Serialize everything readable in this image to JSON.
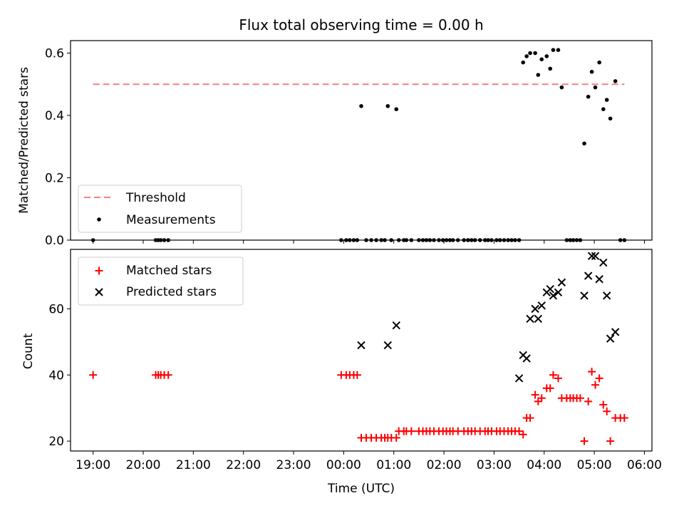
{
  "figure": {
    "title": "Flux total observing time = 0.00 h",
    "xlabel": "Time (UTC)",
    "xticks": [
      "19:00",
      "20:00",
      "21:00",
      "22:00",
      "23:00",
      "00:00",
      "01:00",
      "02:00",
      "03:00",
      "04:00",
      "05:00",
      "06:00"
    ],
    "colors": {
      "threshold": "#f08080",
      "measurement": "#000000",
      "matched": "#ff0000",
      "predicted": "#000000"
    }
  },
  "chart_data": [
    {
      "type": "scatter",
      "ylabel": "Matched/Predicted stars",
      "xlim": [
        18.55,
        30.15
      ],
      "ylim": [
        0,
        0.64
      ],
      "yticks": [
        "0.0",
        "0.2",
        "0.4",
        "0.6"
      ],
      "threshold": {
        "name": "Threshold",
        "value": 0.5,
        "x": [
          19.0,
          29.6
        ]
      },
      "legend": {
        "placement": "lower-left",
        "labels": [
          "Threshold",
          "Measurements"
        ]
      },
      "series": [
        {
          "name": "Measurements",
          "x": [
            19.0,
            20.25,
            20.3,
            20.35,
            20.42,
            20.5,
            23.95,
            24.05,
            24.12,
            24.2,
            24.27,
            24.35,
            24.45,
            24.55,
            24.65,
            24.75,
            24.82,
            24.88,
            24.95,
            25.05,
            25.1,
            25.2,
            25.25,
            25.35,
            25.5,
            25.58,
            25.65,
            25.72,
            25.8,
            25.9,
            25.98,
            26.05,
            26.12,
            26.18,
            26.28,
            26.4,
            26.48,
            26.55,
            26.62,
            26.72,
            26.82,
            26.88,
            26.95,
            27.05,
            27.12,
            27.2,
            27.28,
            27.35,
            27.42,
            27.5,
            27.58,
            27.65,
            27.72,
            27.82,
            27.88,
            27.95,
            28.05,
            28.12,
            28.18,
            28.28,
            28.35,
            28.45,
            28.52,
            28.58,
            28.65,
            28.72,
            28.8,
            28.88,
            28.95,
            29.02,
            29.1,
            29.18,
            29.25,
            29.32,
            29.42,
            29.52,
            29.6
          ],
          "y": [
            0,
            0,
            0,
            0,
            0,
            0,
            0,
            0,
            0,
            0,
            0,
            0.43,
            0,
            0,
            0,
            0,
            0,
            0.43,
            0,
            0.42,
            0,
            0,
            0,
            0,
            0,
            0,
            0,
            0,
            0,
            0,
            0,
            0,
            0,
            0,
            0,
            0,
            0,
            0,
            0,
            0,
            0,
            0,
            0,
            0,
            0,
            0,
            0,
            0,
            0,
            0,
            0.57,
            0.59,
            0.6,
            0.6,
            0.53,
            0.58,
            0.59,
            0.55,
            0.61,
            0.61,
            0.49,
            0,
            0,
            0,
            0,
            0,
            0.31,
            0.46,
            0.54,
            0.49,
            0.57,
            0.42,
            0.45,
            0.39,
            0.51,
            0,
            0
          ]
        }
      ]
    },
    {
      "type": "scatter",
      "ylabel": "Count",
      "xlim": [
        18.55,
        30.15
      ],
      "ylim": [
        17,
        78
      ],
      "yticks": [
        "20",
        "40",
        "60"
      ],
      "legend": {
        "placement": "upper-left",
        "labels": [
          "Matched stars",
          "Predicted stars"
        ]
      },
      "series": [
        {
          "name": "Matched stars",
          "marker": "+",
          "x": [
            19.0,
            20.25,
            20.3,
            20.35,
            20.42,
            20.5,
            23.95,
            24.05,
            24.12,
            24.2,
            24.27,
            24.35,
            24.45,
            24.55,
            24.65,
            24.75,
            24.82,
            24.88,
            24.95,
            25.05,
            25.1,
            25.2,
            25.25,
            25.35,
            25.5,
            25.58,
            25.65,
            25.72,
            25.8,
            25.9,
            25.98,
            26.05,
            26.12,
            26.18,
            26.28,
            26.4,
            26.48,
            26.55,
            26.62,
            26.72,
            26.82,
            26.88,
            26.95,
            27.05,
            27.12,
            27.2,
            27.28,
            27.35,
            27.42,
            27.5,
            27.58,
            27.65,
            27.72,
            27.82,
            27.88,
            27.95,
            28.05,
            28.12,
            28.18,
            28.28,
            28.35,
            28.45,
            28.52,
            28.58,
            28.65,
            28.72,
            28.8,
            28.88,
            28.95,
            29.02,
            29.1,
            29.18,
            29.25,
            29.32,
            29.42,
            29.52,
            29.6
          ],
          "y": [
            40,
            40,
            40,
            40,
            40,
            40,
            40,
            40,
            40,
            40,
            40,
            21,
            21,
            21,
            21,
            21,
            21,
            21,
            21,
            21,
            23,
            23,
            23,
            23,
            23,
            23,
            23,
            23,
            23,
            23,
            23,
            23,
            23,
            23,
            23,
            23,
            23,
            23,
            23,
            23,
            23,
            23,
            23,
            23,
            23,
            23,
            23,
            23,
            23,
            23,
            22,
            27,
            27,
            34,
            32,
            33,
            36,
            36,
            40,
            39,
            33,
            33,
            33,
            33,
            33,
            33,
            20,
            32,
            41,
            37,
            39,
            31,
            29,
            20,
            27,
            27,
            27
          ]
        },
        {
          "name": "Predicted stars",
          "marker": "x",
          "x": [
            24.35,
            24.88,
            25.05,
            27.5,
            27.58,
            27.65,
            27.72,
            27.82,
            27.88,
            27.95,
            28.05,
            28.12,
            28.18,
            28.28,
            28.35,
            28.8,
            28.88,
            28.95,
            29.02,
            29.1,
            29.18,
            29.25,
            29.32,
            29.42
          ],
          "y": [
            49,
            49,
            55,
            39,
            46,
            45,
            57,
            60,
            57,
            61,
            65,
            66,
            64,
            65,
            68,
            64,
            70,
            76,
            76,
            69,
            74,
            64,
            51,
            53
          ]
        }
      ]
    }
  ]
}
